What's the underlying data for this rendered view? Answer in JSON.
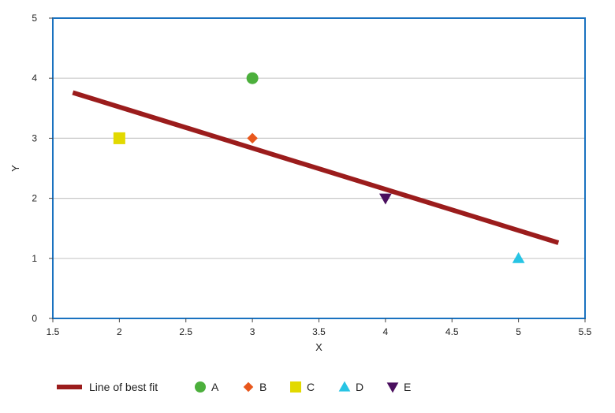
{
  "chart_data": {
    "type": "scatter",
    "xlabel": "X",
    "ylabel": "Y",
    "xlim": [
      1.5,
      5.5
    ],
    "ylim": [
      0,
      5
    ],
    "x_ticks": [
      "1.5",
      "2",
      "2.5",
      "3",
      "3.5",
      "4",
      "4.5",
      "5",
      "5.5"
    ],
    "y_ticks": [
      "0",
      "1",
      "2",
      "3",
      "4",
      "5"
    ],
    "grid": "horizontal",
    "legend_position": "bottom",
    "series": [
      {
        "name": "A",
        "x": 3,
        "y": 4,
        "marker": "circle",
        "color": "#4caf3c"
      },
      {
        "name": "B",
        "x": 3,
        "y": 3,
        "marker": "diamond",
        "color": "#e8571c"
      },
      {
        "name": "C",
        "x": 2,
        "y": 3,
        "marker": "square",
        "color": "#e2d900"
      },
      {
        "name": "D",
        "x": 5,
        "y": 1,
        "marker": "triangle-up",
        "color": "#27c4e4"
      },
      {
        "name": "E",
        "x": 4,
        "y": 2,
        "marker": "triangle-down",
        "color": "#4a0f5e"
      }
    ],
    "fit_line": {
      "name": "Line of best fit",
      "x": [
        1.65,
        5.3
      ],
      "y": [
        3.76,
        1.26
      ],
      "color": "#9b1c1c"
    },
    "plot_border_color": "#1a72c0",
    "grid_color": "#c8c8c8"
  }
}
